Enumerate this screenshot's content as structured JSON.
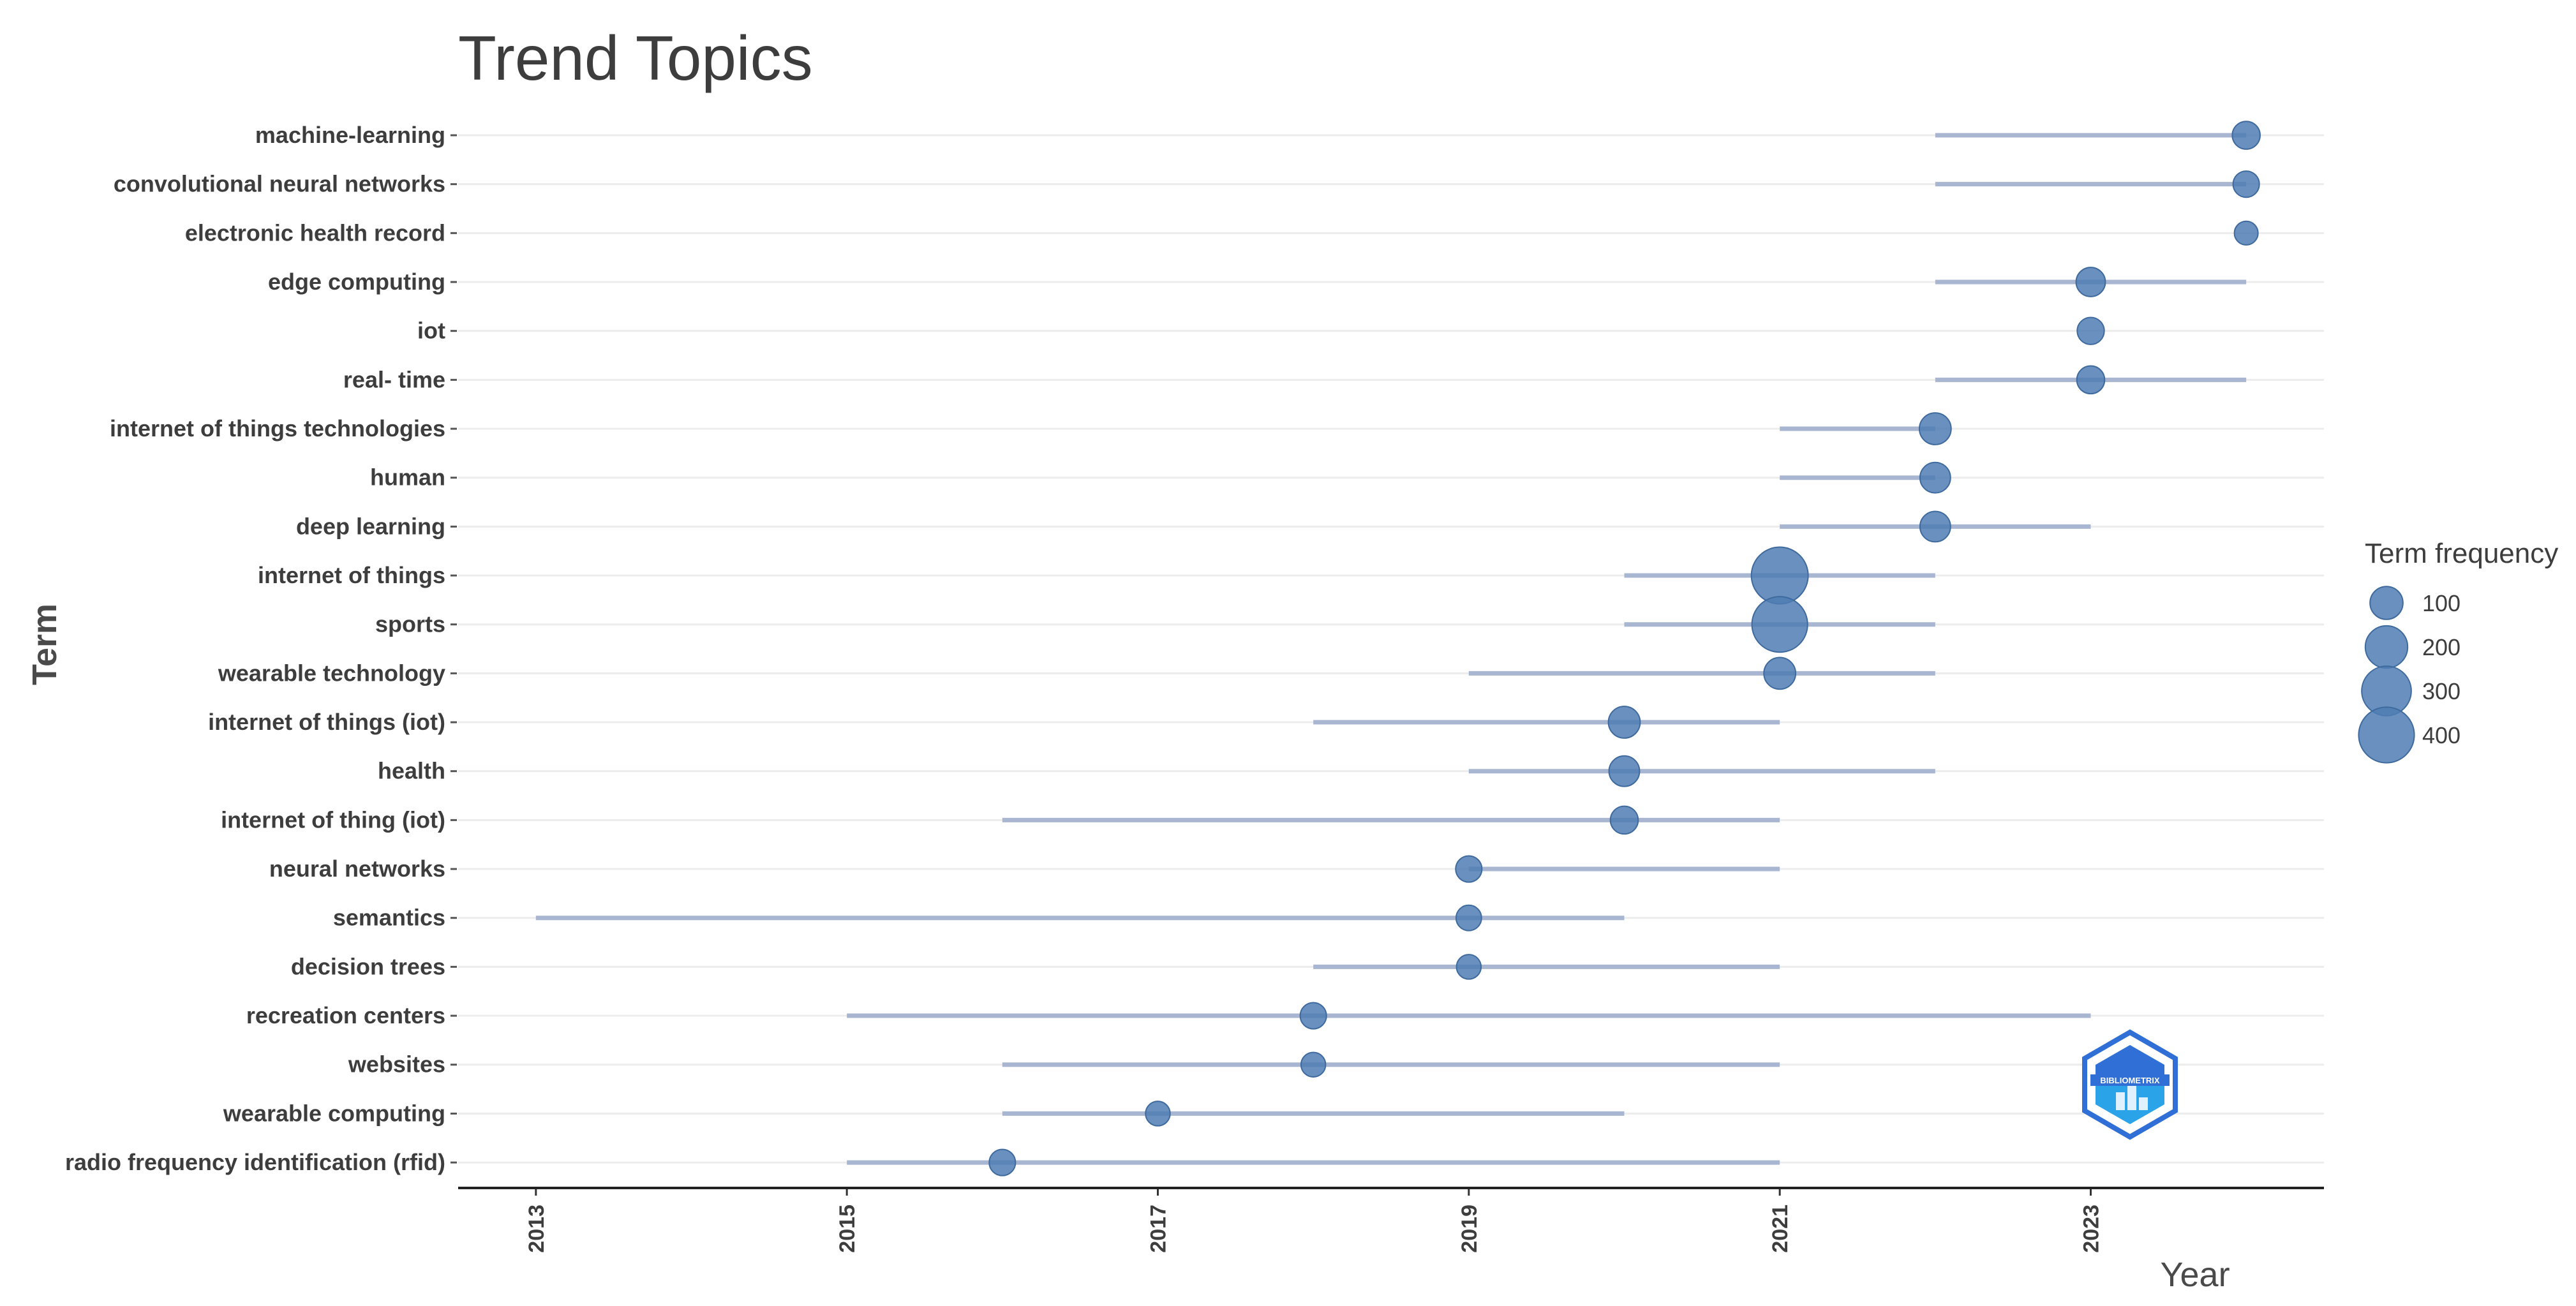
{
  "chart_data": {
    "type": "scatter",
    "title": "Trend Topics",
    "xlabel": "Year",
    "ylabel": "Term",
    "xlim": [
      2012.5,
      2024.5
    ],
    "x_ticks": [
      "2013",
      "2015",
      "2017",
      "2019",
      "2021",
      "2023"
    ],
    "grid": "horizontal",
    "legend": {
      "title": "Term frequency",
      "position": "right",
      "entries": [
        "100",
        "200",
        "300",
        "400"
      ],
      "values": [
        100,
        200,
        300,
        400
      ]
    },
    "colors": {
      "point": "#4f7cb3",
      "range_line": "#a9b6d1",
      "text": "#3d3d3d"
    },
    "terms": [
      {
        "term": "machine-learning",
        "start": 2022,
        "median": 2024,
        "end": 2024,
        "freq": 60
      },
      {
        "term": "convolutional neural networks",
        "start": 2022,
        "median": 2024,
        "end": 2024,
        "freq": 50
      },
      {
        "term": "electronic health record",
        "start": 2024,
        "median": 2024,
        "end": 2024,
        "freq": 35
      },
      {
        "term": "edge computing",
        "start": 2022,
        "median": 2023,
        "end": 2024,
        "freq": 70
      },
      {
        "term": "iot",
        "start": 2023,
        "median": 2023,
        "end": 2023,
        "freq": 55
      },
      {
        "term": "real- time",
        "start": 2022,
        "median": 2023,
        "end": 2024,
        "freq": 60
      },
      {
        "term": "internet of things technologies",
        "start": 2021,
        "median": 2022,
        "end": 2022,
        "freq": 90
      },
      {
        "term": "human",
        "start": 2021,
        "median": 2022,
        "end": 2022,
        "freq": 80
      },
      {
        "term": "deep learning",
        "start": 2021,
        "median": 2022,
        "end": 2023,
        "freq": 80
      },
      {
        "term": "internet of things",
        "start": 2020,
        "median": 2021,
        "end": 2022,
        "freq": 420
      },
      {
        "term": "sports",
        "start": 2020,
        "median": 2021,
        "end": 2022,
        "freq": 400
      },
      {
        "term": "wearable technology",
        "start": 2019,
        "median": 2021,
        "end": 2022,
        "freq": 90
      },
      {
        "term": "internet of things (iot)",
        "start": 2018,
        "median": 2020,
        "end": 2021,
        "freq": 90
      },
      {
        "term": "health",
        "start": 2019,
        "median": 2020,
        "end": 2022,
        "freq": 80
      },
      {
        "term": "internet of thing (iot)",
        "start": 2016,
        "median": 2020,
        "end": 2021,
        "freq": 60
      },
      {
        "term": "neural networks",
        "start": 2019,
        "median": 2019,
        "end": 2021,
        "freq": 50
      },
      {
        "term": "semantics",
        "start": 2013,
        "median": 2019,
        "end": 2020,
        "freq": 45
      },
      {
        "term": "decision trees",
        "start": 2018,
        "median": 2019,
        "end": 2021,
        "freq": 40
      },
      {
        "term": "recreation centers",
        "start": 2015,
        "median": 2018,
        "end": 2023,
        "freq": 50
      },
      {
        "term": "websites",
        "start": 2016,
        "median": 2018,
        "end": 2021,
        "freq": 40
      },
      {
        "term": "wearable computing",
        "start": 2016,
        "median": 2017,
        "end": 2020,
        "freq": 40
      },
      {
        "term": "radio frequency identification (rfid)",
        "start": 2015,
        "median": 2016,
        "end": 2021,
        "freq": 50
      }
    ]
  },
  "logo": {
    "name": "bibliometrix-logo",
    "text": "BIBLIOMETRIX"
  }
}
